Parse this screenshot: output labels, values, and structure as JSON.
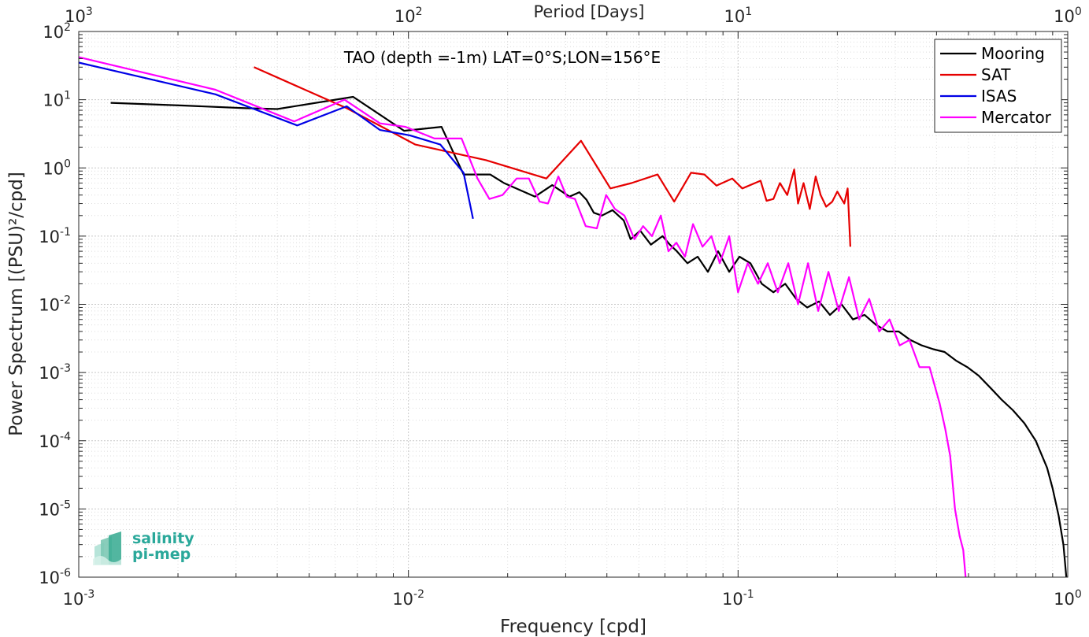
{
  "logo": {
    "line1": "salinity",
    "line2": "pi-mep"
  },
  "chart_data": {
    "type": "line",
    "title": "TAO (depth =-1m) LAT=0°S;LON=156°E",
    "xlabel": "Frequency [cpd]",
    "ylabel": "Power Spectrum [(PSU)²/cpd]",
    "top_axis_label": "Period [Days]",
    "x_scale": "log",
    "y_scale": "log",
    "xlim": [
      0.001,
      1
    ],
    "ylim": [
      1e-06,
      100
    ],
    "grid": true,
    "legend_position": "top-right",
    "x_tick_exponents": [
      "-3",
      "-2",
      "-1",
      "0"
    ],
    "y_tick_exponents": [
      "-6",
      "-5",
      "-4",
      "-3",
      "-2",
      "-1",
      "0",
      "1",
      "2"
    ],
    "top_tick_exponents": [
      "3",
      "2",
      "1",
      "0"
    ],
    "series": [
      {
        "name": "Mooring",
        "color": "#000000",
        "x": [
          0.00125,
          0.0021,
          0.0032,
          0.004,
          0.0068,
          0.0097,
          0.0126,
          0.0147,
          0.0177,
          0.0195,
          0.0242,
          0.0273,
          0.0308,
          0.033,
          0.0347,
          0.0365,
          0.0386,
          0.0416,
          0.045,
          0.0472,
          0.0505,
          0.0544,
          0.059,
          0.0621,
          0.0652,
          0.0702,
          0.0754,
          0.081,
          0.087,
          0.094,
          0.101,
          0.109,
          0.118,
          0.128,
          0.139,
          0.15,
          0.162,
          0.176,
          0.19,
          0.206,
          0.223,
          0.242,
          0.262,
          0.284,
          0.307,
          0.333,
          0.361,
          0.391,
          0.423,
          0.458,
          0.496,
          0.537,
          0.582,
          0.63,
          0.682,
          0.739,
          0.8,
          0.866,
          0.9,
          0.938,
          0.97,
          0.99
        ],
        "y": [
          9,
          8.2,
          7.5,
          7.3,
          11,
          3.5,
          4,
          0.8,
          0.8,
          0.6,
          0.38,
          0.56,
          0.38,
          0.44,
          0.34,
          0.22,
          0.2,
          0.24,
          0.17,
          0.09,
          0.12,
          0.075,
          0.1,
          0.075,
          0.06,
          0.04,
          0.05,
          0.03,
          0.06,
          0.03,
          0.05,
          0.04,
          0.02,
          0.015,
          0.02,
          0.012,
          0.009,
          0.011,
          0.007,
          0.01,
          0.006,
          0.007,
          0.005,
          0.004,
          0.004,
          0.003,
          0.0025,
          0.0022,
          0.002,
          0.0015,
          0.0012,
          0.0009,
          0.0006,
          0.0004,
          0.00028,
          0.00018,
          0.0001,
          4e-05,
          2e-05,
          8e-06,
          3e-06,
          1e-06
        ]
      },
      {
        "name": "SAT",
        "color": "#e60000",
        "x": [
          0.0034,
          0.0065,
          0.0105,
          0.0172,
          0.0262,
          0.0334,
          0.041,
          0.0475,
          0.057,
          0.064,
          0.072,
          0.079,
          0.086,
          0.096,
          0.103,
          0.117,
          0.122,
          0.128,
          0.134,
          0.141,
          0.148,
          0.152,
          0.158,
          0.165,
          0.172,
          0.178,
          0.185,
          0.193,
          0.2,
          0.21,
          0.215,
          0.219
        ],
        "y": [
          30,
          7.5,
          2.2,
          1.3,
          0.7,
          2.5,
          0.5,
          0.6,
          0.8,
          0.32,
          0.85,
          0.8,
          0.55,
          0.7,
          0.5,
          0.65,
          0.33,
          0.35,
          0.6,
          0.4,
          0.95,
          0.3,
          0.6,
          0.25,
          0.75,
          0.4,
          0.27,
          0.32,
          0.45,
          0.3,
          0.5,
          0.07
        ]
      },
      {
        "name": "ISAS",
        "color": "#0000e6",
        "x": [
          0.001,
          0.0026,
          0.0046,
          0.0065,
          0.0082,
          0.0101,
          0.0125,
          0.0147,
          0.0157
        ],
        "y": [
          35,
          12,
          4.2,
          8,
          3.6,
          3.0,
          2.2,
          0.85,
          0.18
        ]
      },
      {
        "name": "Mercator",
        "color": "#ff00ff",
        "x": [
          0.001,
          0.0026,
          0.0045,
          0.0064,
          0.0082,
          0.0098,
          0.012,
          0.0145,
          0.0162,
          0.0176,
          0.0193,
          0.0213,
          0.0232,
          0.025,
          0.0265,
          0.0285,
          0.0302,
          0.032,
          0.0345,
          0.0373,
          0.0398,
          0.0423,
          0.0452,
          0.0485,
          0.0515,
          0.0548,
          0.0583,
          0.0615,
          0.065,
          0.069,
          0.073,
          0.078,
          0.083,
          0.088,
          0.094,
          0.1,
          0.107,
          0.115,
          0.123,
          0.132,
          0.142,
          0.152,
          0.163,
          0.175,
          0.188,
          0.202,
          0.217,
          0.233,
          0.25,
          0.268,
          0.288,
          0.309,
          0.331,
          0.355,
          0.381,
          0.409,
          0.425,
          0.44,
          0.455,
          0.47,
          0.482,
          0.49
        ],
        "y": [
          42,
          14,
          4.8,
          10,
          4.5,
          4.0,
          2.7,
          2.7,
          0.7,
          0.35,
          0.4,
          0.7,
          0.7,
          0.32,
          0.3,
          0.75,
          0.38,
          0.35,
          0.14,
          0.13,
          0.4,
          0.25,
          0.2,
          0.09,
          0.14,
          0.1,
          0.2,
          0.06,
          0.08,
          0.05,
          0.15,
          0.07,
          0.1,
          0.04,
          0.1,
          0.015,
          0.04,
          0.02,
          0.04,
          0.015,
          0.04,
          0.01,
          0.04,
          0.008,
          0.03,
          0.008,
          0.025,
          0.006,
          0.012,
          0.004,
          0.006,
          0.0025,
          0.003,
          0.0012,
          0.0012,
          0.00035,
          0.00015,
          6e-05,
          1e-05,
          4e-06,
          2.5e-06,
          1e-06
        ]
      }
    ]
  }
}
